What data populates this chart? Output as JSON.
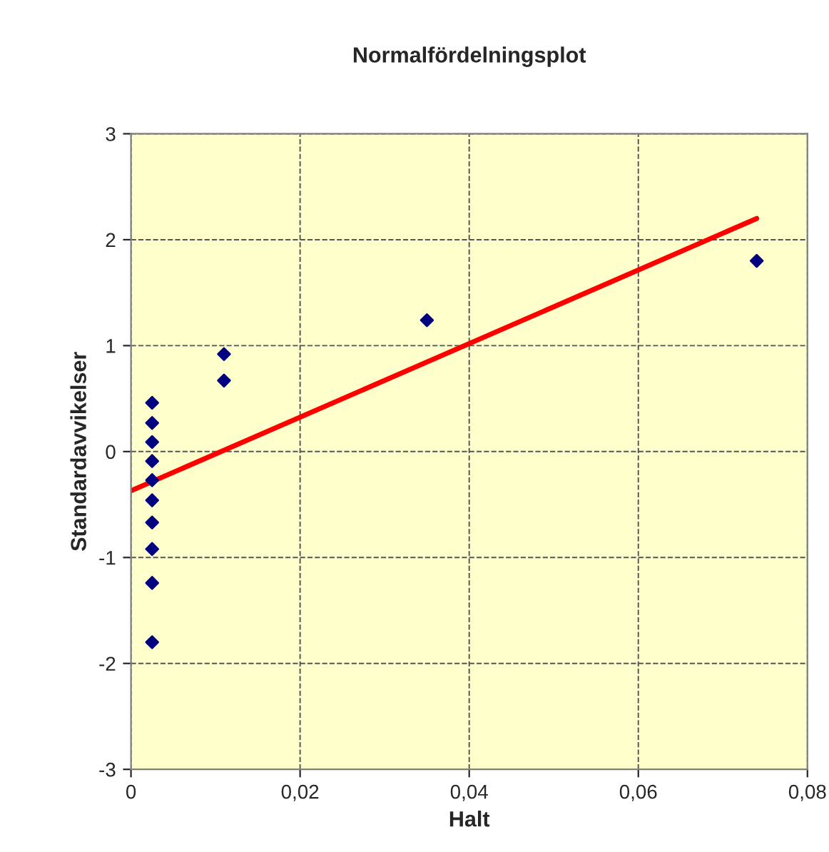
{
  "chart_data": {
    "type": "scatter",
    "title": "Normalfördelningsplot",
    "xlabel": "Halt",
    "ylabel": "Standardavvikelser",
    "series": [
      {
        "color": "#000080",
        "marker": "diamond",
        "x": [
          0.0025,
          0.0025,
          0.0025,
          0.0025,
          0.0025,
          0.0025,
          0.0025,
          0.0025,
          0.0025,
          0.0025,
          0.011,
          0.011,
          0.035,
          0.074
        ],
        "values": [
          -1.8,
          -1.24,
          -0.92,
          -0.67,
          -0.46,
          -0.27,
          -0.09,
          0.09,
          0.27,
          0.46,
          0.67,
          0.92,
          1.24,
          1.8
        ]
      },
      {
        "type": "line",
        "color": "#ff0000",
        "marker": "none",
        "line_style": "solid",
        "x": [
          0,
          0.074
        ],
        "values": [
          -0.37,
          2.2
        ]
      }
    ],
    "xlim": [
      0,
      0.08
    ],
    "xticks": [
      0,
      {
        "value": 0.02,
        "label": "0,02"
      },
      {
        "value": 0.04,
        "label": "0,04"
      },
      {
        "value": 0.06,
        "label": "0,06"
      },
      {
        "value": 0.08,
        "label": "0,08"
      }
    ],
    "ylim": [
      -3,
      3
    ],
    "yticks": [
      -3,
      -2,
      -1,
      0,
      1,
      2,
      3
    ],
    "grid": true,
    "legend": false
  }
}
